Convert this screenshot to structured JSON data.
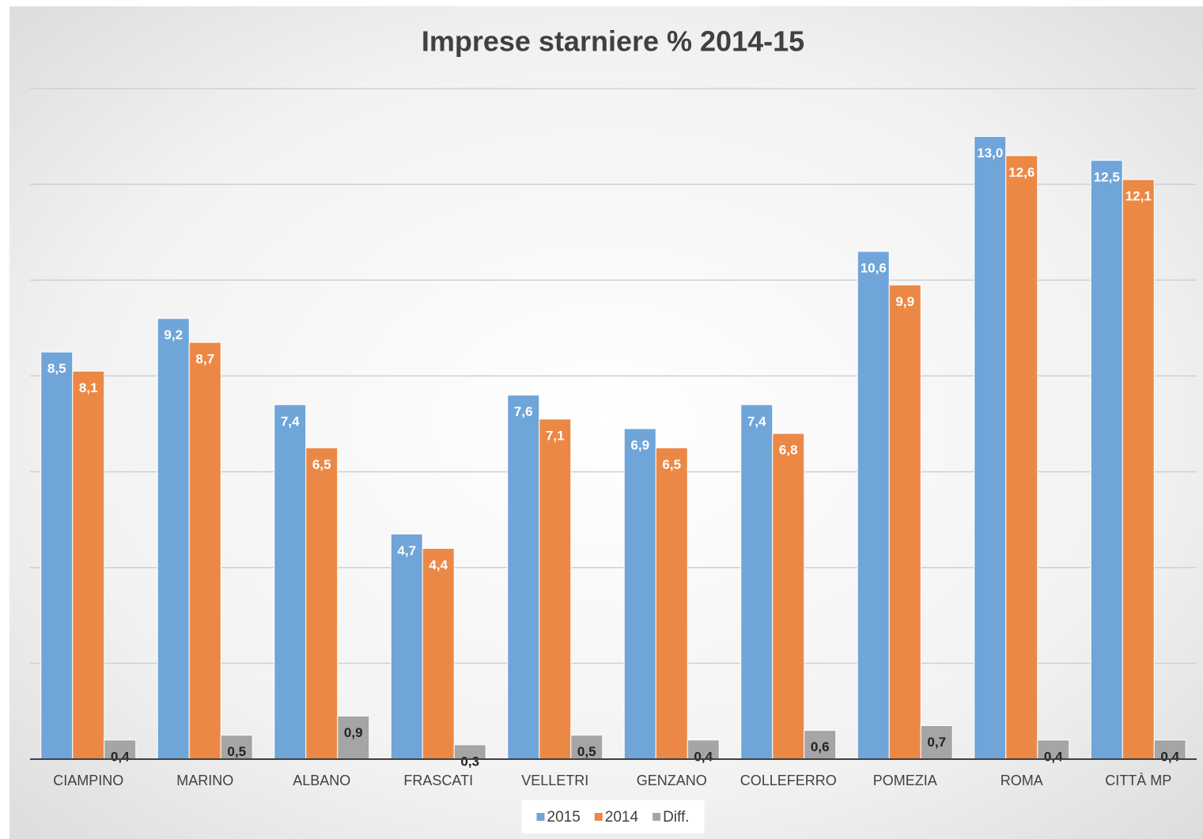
{
  "chart_data": {
    "type": "bar",
    "title": "Imprese starniere % 2014-15",
    "categories": [
      "CIAMPINO",
      "MARINO",
      "ALBANO",
      "FRASCATI",
      "VELLETRI",
      "GENZANO",
      "COLLEFERRO",
      "POMEZIA",
      "ROMA",
      "CITTÀ MP"
    ],
    "series": [
      {
        "name": "2015",
        "color": "#6fa5d9",
        "values": [
          8.5,
          9.2,
          7.4,
          4.7,
          7.6,
          6.9,
          7.4,
          10.6,
          13.0,
          12.5
        ],
        "value_labels": [
          "8,5",
          "9,2",
          "7,4",
          "4,7",
          "7,6",
          "6,9",
          "7,4",
          "10,6",
          "13,0",
          "12,5"
        ]
      },
      {
        "name": "2014",
        "color": "#ec8846",
        "values": [
          8.1,
          8.7,
          6.5,
          4.4,
          7.1,
          6.5,
          6.8,
          9.9,
          12.6,
          12.1
        ],
        "value_labels": [
          "8,1",
          "8,7",
          "6,5",
          "4,4",
          "7,1",
          "6,5",
          "6,8",
          "9,9",
          "12,6",
          "12,1"
        ]
      },
      {
        "name": "Diff.",
        "color": "#a5a5a5",
        "values": [
          0.4,
          0.5,
          0.9,
          0.3,
          0.5,
          0.4,
          0.6,
          0.7,
          0.4,
          0.4
        ],
        "value_labels": [
          "0,4",
          "0,5",
          "0,9",
          "0,3",
          "0,5",
          "0,4",
          "0,6",
          "0,7",
          "0,4",
          "0,4"
        ]
      }
    ],
    "ylim": [
      0,
      14
    ],
    "yticks": [
      0,
      2,
      4,
      6,
      8,
      10,
      12,
      14
    ],
    "grid": true,
    "legend": "bottom"
  }
}
